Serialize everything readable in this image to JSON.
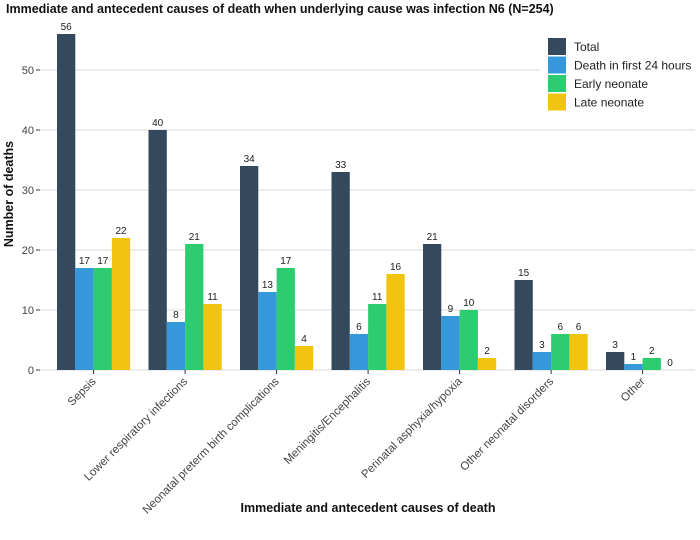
{
  "chart_data": {
    "type": "bar",
    "title": "Immediate and antecedent causes of death when underlying cause was infection N6 (N=254)",
    "xlabel": "Immediate and antecedent causes of death",
    "ylabel": "Number of deaths",
    "ylim": [
      0,
      58.7
    ],
    "yticks": [
      0,
      10,
      20,
      30,
      40,
      50
    ],
    "grid": true,
    "legend_position": "top-right",
    "categories": [
      "Sepsis",
      "Lower respiratory infections",
      "Neonatal preterm birth complications",
      "Meningitis/Encephalitis",
      "Perinatal asphyxia/hypoxia",
      "Other neonatal disorders",
      "Other"
    ],
    "series": [
      {
        "name": "Total",
        "color": "#34495e",
        "values": [
          56,
          40,
          34,
          33,
          21,
          15,
          3
        ]
      },
      {
        "name": "Death in first 24 hours",
        "color": "#3498db",
        "values": [
          17,
          8,
          13,
          6,
          9,
          3,
          1
        ]
      },
      {
        "name": "Early neonate",
        "color": "#2ecc71",
        "values": [
          17,
          21,
          17,
          11,
          10,
          6,
          2
        ]
      },
      {
        "name": "Late neonate",
        "color": "#f1c40f",
        "values": [
          22,
          11,
          4,
          16,
          2,
          6,
          0
        ]
      }
    ]
  }
}
